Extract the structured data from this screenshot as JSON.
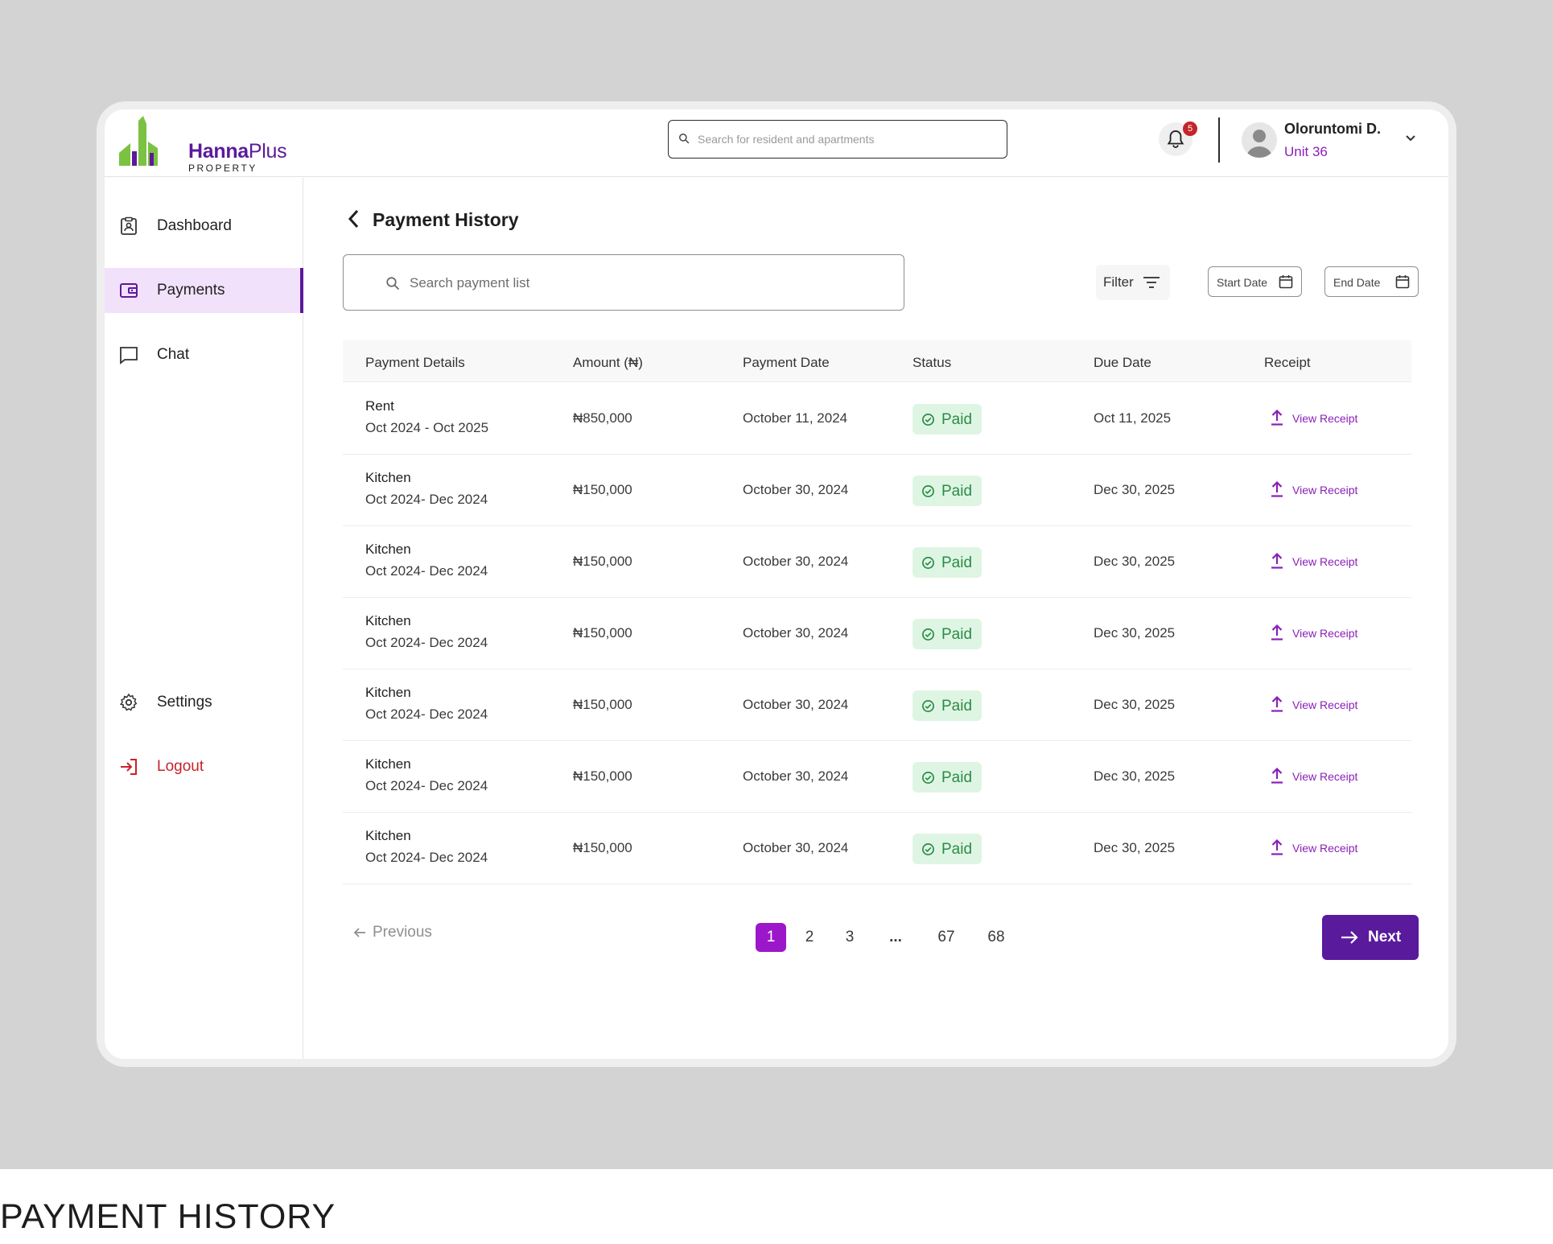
{
  "brand": {
    "name_main": "Hanna",
    "name_plus": "Plus",
    "name_sub": "PROPERTY"
  },
  "header": {
    "search_placeholder": "Search for resident and apartments",
    "notification_count": "5",
    "user_name": "Oloruntomi D.",
    "user_unit": "Unit 36"
  },
  "sidebar": {
    "dashboard": "Dashboard",
    "payments": "Payments",
    "chat": "Chat",
    "settings": "Settings",
    "logout": "Logout"
  },
  "page": {
    "title": "Payment History",
    "search_placeholder": "Search payment list",
    "filter_label": "Filter",
    "start_date_label": "Start Date",
    "end_date_label": "End Date"
  },
  "table": {
    "headers": [
      "Payment Details",
      "Amount (₦)",
      "Payment Date",
      "Status",
      "Due Date",
      "Receipt"
    ],
    "rows": [
      {
        "title": "Rent",
        "period": "Oct 2024 - Oct 2025",
        "amount": "₦850,000",
        "payment_date": "October 11, 2024",
        "status": "Paid",
        "due_date": "Oct 11, 2025",
        "receipt": "View Receipt"
      },
      {
        "title": "Kitchen",
        "period": "Oct 2024- Dec 2024",
        "amount": "₦150,000",
        "payment_date": "October 30, 2024",
        "status": "Paid",
        "due_date": "Dec 30, 2025",
        "receipt": "View Receipt"
      },
      {
        "title": "Kitchen",
        "period": "Oct 2024- Dec 2024",
        "amount": "₦150,000",
        "payment_date": "October 30, 2024",
        "status": "Paid",
        "due_date": "Dec 30, 2025",
        "receipt": "View Receipt"
      },
      {
        "title": "Kitchen",
        "period": "Oct 2024- Dec 2024",
        "amount": "₦150,000",
        "payment_date": "October 30, 2024",
        "status": "Paid",
        "due_date": "Dec 30, 2025",
        "receipt": "View Receipt"
      },
      {
        "title": "Kitchen",
        "period": "Oct 2024- Dec 2024",
        "amount": "₦150,000",
        "payment_date": "October 30, 2024",
        "status": "Paid",
        "due_date": "Dec 30, 2025",
        "receipt": "View Receipt"
      },
      {
        "title": "Kitchen",
        "period": "Oct 2024- Dec 2024",
        "amount": "₦150,000",
        "payment_date": "October 30, 2024",
        "status": "Paid",
        "due_date": "Dec 30, 2025",
        "receipt": "View Receipt"
      },
      {
        "title": "Kitchen",
        "period": "Oct 2024- Dec 2024",
        "amount": "₦150,000",
        "payment_date": "October 30, 2024",
        "status": "Paid",
        "due_date": "Dec 30, 2025",
        "receipt": "View Receipt"
      }
    ]
  },
  "pagination": {
    "previous": "Previous",
    "pages": [
      "1",
      "2",
      "3",
      "...",
      "67",
      "68"
    ],
    "current": "1",
    "next": "Next"
  },
  "caption": "PAYMENT HISTORY",
  "colors": {
    "brand_purple": "#5a1a9c",
    "accent_magenta": "#9b17c9",
    "paid_green": "#2a8c46",
    "paid_bg": "#dff5e4",
    "logout_red": "#c4242b",
    "active_nav_bg": "#f1e1fb"
  },
  "icons": {
    "dashboard": "clipboard-user-icon",
    "payments": "wallet-icon",
    "chat": "chat-square-icon",
    "settings": "gear-icon",
    "logout": "logout-arrow-icon",
    "receipt": "upload-arrow-icon",
    "status": "check-circle-icon"
  }
}
